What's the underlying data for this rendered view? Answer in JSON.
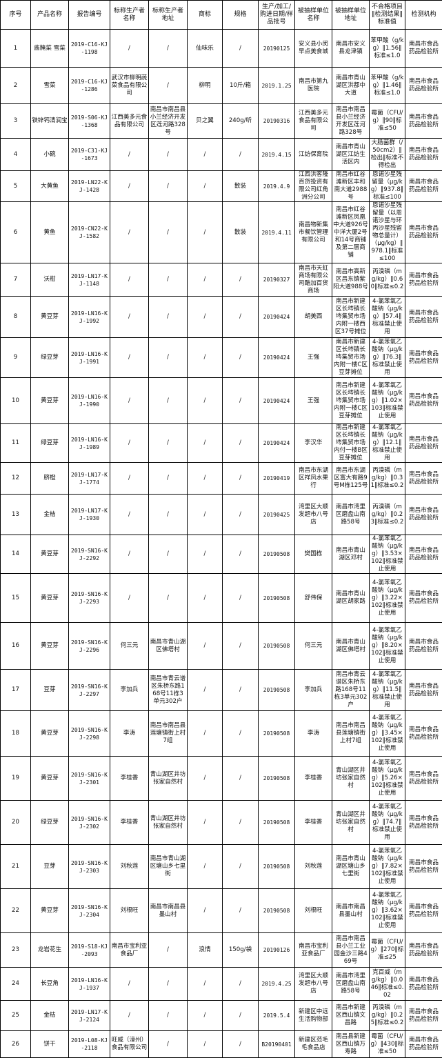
{
  "table": {
    "headers": [
      "序号",
      "产品名称",
      "报告编号",
      "标称生产者名称",
      "标称生产者地址",
      "商标",
      "规格",
      "生产/加工/购进日期/样品批号",
      "被抽样单位名称",
      "被抽样单位地址",
      "不合格项目‖检测结果‖标准值",
      "检测机构"
    ],
    "rows": [
      [
        "1",
        "酱腌菜 雪菜",
        "2019-C16-KJ-1198",
        "/",
        "/",
        "仙味乐",
        "/",
        "20190125",
        "安义县小闵早点美食城",
        "南昌市安义县龙津镇",
        "苯甲酸（g/kg）‖1.56‖标准≤1.0",
        "南昌市食品药品检验所"
      ],
      [
        "2",
        "雪菜",
        "2019-C16-KJ-1286",
        "武汉市柳明蔬菜食品有限公司",
        "/",
        "柳明",
        "10斤/箱",
        "2019.1.25",
        "南昌市第九医院",
        "南昌市青山湖区洪都中大道",
        "苯甲酸（g/kg）‖1.46‖标准≤1.0",
        "南昌市食品药品检验所"
      ],
      [
        "3",
        "铁锌钙清润宝",
        "2019-S06-KJ-1368",
        "江西美多元食品有限公司",
        "南昌市南昌县小兰经济开发区莲河路328号",
        "贝之翼",
        "240g/听",
        "20190316",
        "江西美多元食品有限公司",
        "南昌市南昌县小兰经济开发区莲河路328号",
        "霉菌（CFU/g）‖90‖标准≤50",
        "南昌市食品药品检验所"
      ],
      [
        "4",
        "小碗",
        "2019-C31-KJ-1673",
        "/",
        "/",
        "/",
        "/",
        "2019.4.15",
        "江纺保育院",
        "南昌市青山湖区江纺生活区内",
        "大肠菌群（/50cm2）‖检出‖标准不得检出",
        "南昌市食品药品检验所"
      ],
      [
        "5",
        "大黄鱼",
        "2019-LN22-KJ-1428",
        "/",
        "/",
        "/",
        "散装",
        "2019.4.9",
        "江西洪客隆百货投资有限公司红角洲分公司",
        "南昌市红谷滩新区丰和南大道2988号",
        "恩诺沙星残留量（μg/kg）‖937.8‖标准≤100",
        "南昌市食品药品检验所"
      ],
      [
        "6",
        "黄鱼",
        "2019-CN22-KJ-1582",
        "/",
        "/",
        "/",
        "散装",
        "2019.4.11",
        "南昌物新集市餐饮管理有限公司",
        "南昌市红谷滩新区凤凰中大道926号中洋大厦2号和14号商铺及第二层商铺",
        "恩诺沙星残留量（以恩诺沙星与环丙沙星残留物总量计）（μg/kg）‖978.1‖标准≤100",
        "南昌市食品药品检验所"
      ],
      [
        "7",
        "沃柑",
        "2019-LN17-KJ-1148",
        "/",
        "/",
        "/",
        "/",
        "20190327",
        "南昌市天虹商场有限公司酷加百货商场",
        "南昌市高新区昌东镇紫阳大道988号",
        "丙溴磷（mg/kg）‖0.60‖标准≤0.2",
        "南昌市食品药品检验所"
      ],
      [
        "8",
        "黄豆芽",
        "2019-LN16-KJ-1992",
        "/",
        "/",
        "/",
        "/",
        "20190424",
        "胡美西",
        "南昌市新建区长埁镇长埁集贸市场内附一楼西区37号摊位",
        "4-氯苯氧乙酸钠（μg/kg）‖57.4‖标准禁止使用",
        "南昌市食品药品检验所"
      ],
      [
        "9",
        "绿豆芽",
        "2019-LN16-KJ-1991",
        "/",
        "/",
        "/",
        "/",
        "20190424",
        "王强",
        "南昌市新建区长埁镇长埁集贸市场内附一楼C区豆芽摊位",
        "4-氯苯氧乙酸钠（μg/kg）‖76.3‖标准禁止使用",
        "南昌市食品药品检验所"
      ],
      [
        "10",
        "黄豆芽",
        "2019-LN16-KJ-1990",
        "/",
        "/",
        "/",
        "/",
        "20190424",
        "王强",
        "南昌市新建区长埁镇长埁集贸市场内附一楼C区豆芽摊位",
        "4-氯苯氧乙酸钠（μg/kg）‖1.02×103‖标准禁止使用",
        "南昌市食品药品检验所"
      ],
      [
        "11",
        "绿豆芽",
        "2019-LN16-KJ-1989",
        "/",
        "/",
        "/",
        "/",
        "20190424",
        "李汉华",
        "南昌市新建区长埁镇长埁集贸市场内付一楼B区豆芽摊位",
        "4-氯苯氧乙酸钠（μg/kg）‖12.1‖标准禁止使用",
        "南昌市食品药品检验所"
      ],
      [
        "12",
        "脐橙",
        "2019-LN17-KJ-1774",
        "/",
        "/",
        "/",
        "/",
        "20190419",
        "南昌市东湖区祥凤水果行",
        "南昌市东湖区富大有路9号M栋125号",
        "丙溴磷（mg/kg）‖0.31‖标准≤0.2",
        "南昌市食品药品检验所"
      ],
      [
        "13",
        "金桔",
        "2019-LN17-KJ-1930",
        "/",
        "/",
        "/",
        "/",
        "20190425",
        "湾里区大顺发超市八号店",
        "南昌市湾里区磨盘山南路58号",
        "丙溴磷（mg/kg）‖0.23‖标准≤0.2",
        "南昌市食品药品检验所"
      ],
      [
        "14",
        "黄豆芽",
        "2019-SN16-KJ-2292",
        "/",
        "/",
        "/",
        "/",
        "20190508",
        "樊国栋",
        "南昌市青山湖区邓村",
        "4-氯苯氧乙酸钠（μg/kg）‖3.53×102‖标准禁止使用",
        "南昌市食品药品检验所"
      ],
      [
        "15",
        "黄豆芽",
        "2019-SN16-KJ-2293",
        "/",
        "/",
        "/",
        "/",
        "20190508",
        "舒伟保",
        "南昌市青山湖区胡家路",
        "4-氯苯氧乙酸钠（μg/kg）‖3.22×102‖标准禁止使用",
        "南昌市食品药品检验所"
      ],
      [
        "16",
        "黄豆芽",
        "2019-SN16-KJ-2296",
        "何三元",
        "南昌市青山湖区佛塔村",
        "/",
        "/",
        "20190508",
        "何三元",
        "南昌市青山湖区佛塔村",
        "4-氯苯氧乙酸钠（μg/kg）‖8.20×102‖标准禁止使用",
        "南昌市食品药品检验所"
      ],
      [
        "17",
        "豆芽",
        "2019-SN16-KJ-2297",
        "李加兵",
        "南昌市青云谱区朱桥东路168号11栋3单元302户",
        "/",
        "/",
        "20190508",
        "李加兵",
        "南昌市青云谱区朱桥东路168号11栋3单元302户",
        "4-氯苯氧乙酸钠（μg/kg）‖11.5‖标准禁止使用",
        "南昌市食品药品检验所"
      ],
      [
        "18",
        "黄豆芽",
        "2019-SN16-KJ-2298",
        "李涛",
        "南昌市南昌县莲塘镇街上村7组",
        "/",
        "/",
        "20190508",
        "李涛",
        "南昌市南昌县莲塘镇街上村7组",
        "4-氯苯氧乙酸钠（μg/kg）‖3.45×102‖标准禁止使用",
        "南昌市食品药品检验所"
      ],
      [
        "19",
        "黄豆芽",
        "2019-SN16-KJ-2301",
        "李桂香",
        "青山湖区井坊张家自然村",
        "/",
        "/",
        "20190508",
        "李桂香",
        "青山湖区井坊张家自然村",
        "4-氯苯氧乙酸钠（μg/kg）‖5.26×102‖标准禁止使用",
        "南昌市食品药品检验所"
      ],
      [
        "20",
        "绿豆芽",
        "2019-SN16-KJ-2302",
        "李桂香",
        "青山湖区井坊张家自然村",
        "/",
        "/",
        "20190508",
        "李桂香",
        "青山湖区井坊张家自然村",
        "4-氯苯氧乙酸钠（μg/kg）‖74.7‖标准禁止使用",
        "南昌市食品药品检验所"
      ],
      [
        "21",
        "豆芽",
        "2019-SN16-KJ-2303",
        "刘秋莲",
        "南昌市青山湖区塘山乡七里街",
        "/",
        "/",
        "20190508",
        "刘秋莲",
        "南昌市青山湖区塘山乡七里街",
        "4-氯苯氧乙酸钠（μg/kg）‖7.82×102‖标准禁止使用",
        "南昌市食品药品检验所"
      ],
      [
        "22",
        "黄豆芽",
        "2019-SN16-KJ-2304",
        "刘根旺",
        "南昌市南昌县墨山村",
        "/",
        "/",
        "20190508",
        "刘根旺",
        "南昌市南昌县墨山村",
        "4-氯苯氧乙酸钠（μg/kg）‖3.62×102‖标准禁止使用",
        "南昌市食品药品检验所"
      ],
      [
        "23",
        "龙岩花生",
        "2019-S18-KJ-2093",
        "南昌市宝利亚食品厂",
        "/",
        "浪情",
        "150g/袋",
        "20190126",
        "南昌市宝利亚食品厂",
        "南昌市南昌县小兰工业园金沙三路469号",
        "霉菌（CFU/g）‖270‖标准≤25",
        "南昌市食品药品检验所"
      ],
      [
        "24",
        "长豆角",
        "2019-LN16-KJ-1937",
        "/",
        "/",
        "/",
        "/",
        "2019.4.25",
        "湾里区大顺发超市八号店",
        "南昌市湾里区磨盘山南路58号",
        "克百威（mg/kg）‖0.046‖标准≤0.02",
        "南昌市食品药品检验所"
      ],
      [
        "25",
        "金桔",
        "2019-LN17-KJ-2124",
        "/",
        "/",
        "/",
        "/",
        "2019.5.4",
        "新建区中远生活购物部",
        "南昌市新建区西山镇文昌路",
        "丙溴磷（mg/kg）‖0.25‖标准≤0.2",
        "南昌市食品药品检验所"
      ],
      [
        "26",
        "饼干",
        "2019-L08-KJ-2118",
        "旺威（漳州）食品有限公司",
        "/",
        "/",
        "/",
        "B20190401",
        "新建区范毛毛食品店",
        "南昌县新建区西山镇万寿路",
        "霉菌（CFU/g）‖430‖标准≤50",
        "南昌市食品药品检验所"
      ]
    ]
  }
}
